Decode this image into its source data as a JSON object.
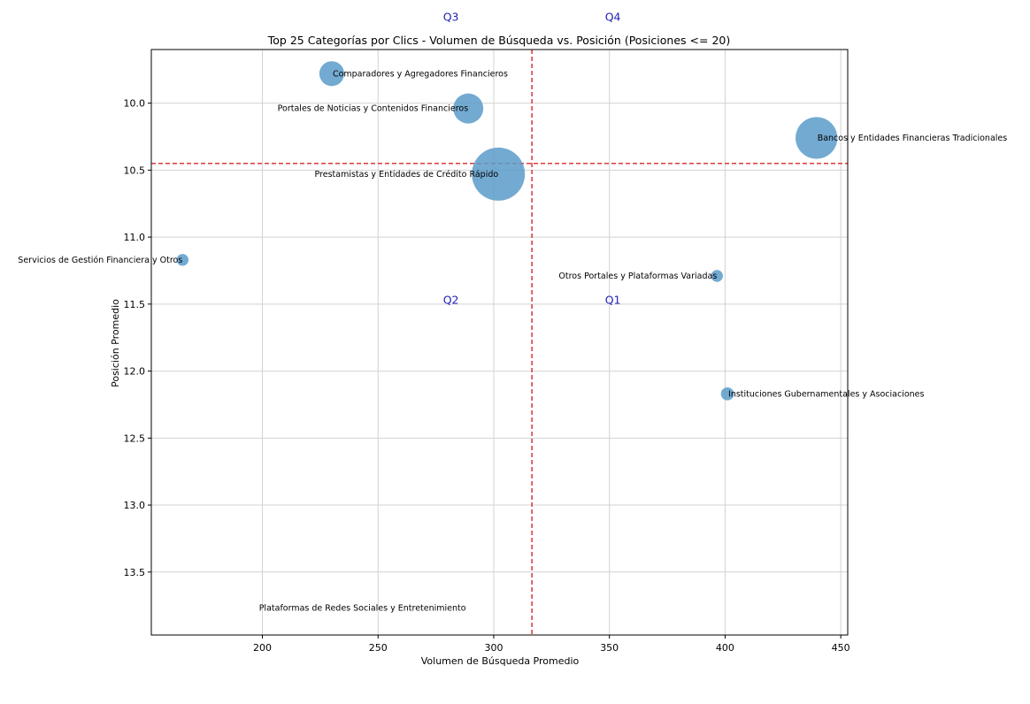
{
  "chart_data": {
    "type": "scatter",
    "title": "Top 25 Categorías por Clics - Volumen de Búsqueda vs. Posición (Posiciones <= 20)",
    "xlabel": "Volumen de Búsqueda Promedio",
    "ylabel": "Posición Promedio",
    "xlim": [
      152,
      453
    ],
    "ylim": [
      13.97,
      9.6
    ],
    "y_inverted": true,
    "xticks": [
      200,
      250,
      300,
      350,
      400,
      450
    ],
    "yticks": [
      10.0,
      10.5,
      11.0,
      11.5,
      12.0,
      12.5,
      13.0,
      13.5
    ],
    "ytick_labels": [
      "10.0",
      "10.5",
      "11.0",
      "11.5",
      "12.0",
      "12.5",
      "13.0",
      "13.5"
    ],
    "grid": true,
    "marker_color": "#5a9bc9",
    "reference_lines": {
      "x": 316.5,
      "y": 10.45,
      "color": "#d62728",
      "style": "dashed"
    },
    "points": [
      {
        "label": "Comparadores y Agregadores Financieros",
        "x": 230,
        "y": 9.78,
        "size_rel": 0.22,
        "label_pos": "right"
      },
      {
        "label": "Portales de Noticias y Contenidos Financieros",
        "x": 289,
        "y": 10.04,
        "size_rel": 0.32,
        "label_pos": "left"
      },
      {
        "label": "Bancos y Entidades Financieras Tradicionales",
        "x": 439.5,
        "y": 10.26,
        "size_rel": 0.62,
        "label_pos": "right"
      },
      {
        "label": "Prestamistas y Entidades de Crédito Rápido",
        "x": 302,
        "y": 10.53,
        "size_rel": 1.0,
        "label_pos": "left"
      },
      {
        "label": "Servicios de Gestión Financiera y Otros",
        "x": 165.5,
        "y": 11.17,
        "size_rel": 0.05,
        "label_pos": "left"
      },
      {
        "label": "Otros Portales y Plataformas Variadas",
        "x": 396.5,
        "y": 11.29,
        "size_rel": 0.05,
        "label_pos": "left"
      },
      {
        "label": "Instituciones Gubernamentales y Asociaciones",
        "x": 401,
        "y": 12.17,
        "size_rel": 0.06,
        "label_pos": "right"
      },
      {
        "label": "Plataformas de Redes Sociales y Entretenimiento",
        "x": 288,
        "y": 13.77,
        "size_rel": 0.0,
        "label_pos": "left"
      }
    ],
    "quadrant_labels": [
      {
        "text": "Q3",
        "x": 281.5,
        "y": 9.36
      },
      {
        "text": "Q4",
        "x": 351.5,
        "y": 9.36
      },
      {
        "text": "Q2",
        "x": 281.5,
        "y": 11.47
      },
      {
        "text": "Q1",
        "x": 351.5,
        "y": 11.47
      }
    ]
  }
}
